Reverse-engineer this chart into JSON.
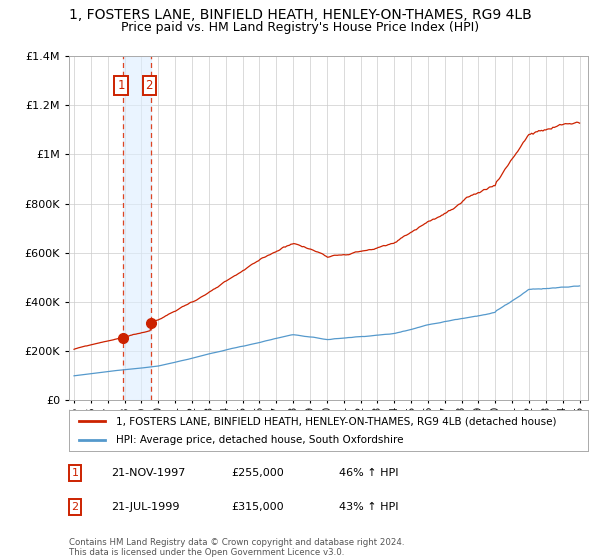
{
  "title": "1, FOSTERS LANE, BINFIELD HEATH, HENLEY-ON-THAMES, RG9 4LB",
  "subtitle": "Price paid vs. HM Land Registry's House Price Index (HPI)",
  "sale1_date": "21-NOV-1997",
  "sale1_price": 255000,
  "sale1_hpi_pct": 46,
  "sale2_date": "21-JUL-1999",
  "sale2_price": 315000,
  "sale2_hpi_pct": 43,
  "line1_label": "1, FOSTERS LANE, BINFIELD HEATH, HENLEY-ON-THAMES, RG9 4LB (detached house)",
  "line2_label": "HPI: Average price, detached house, South Oxfordshire",
  "line1_color": "#cc2200",
  "line2_color": "#5599cc",
  "dot_color": "#cc2200",
  "background_color": "#ffffff",
  "grid_color": "#cccccc",
  "annotation_box_color": "#cc2200",
  "vline_color": "#dd4422",
  "vshade_color": "#ddeeff",
  "copyright_text": "Contains HM Land Registry data © Crown copyright and database right 2024.\nThis data is licensed under the Open Government Licence v3.0.",
  "ylim": [
    0,
    1400000
  ],
  "title_fontsize": 10,
  "subtitle_fontsize": 9
}
